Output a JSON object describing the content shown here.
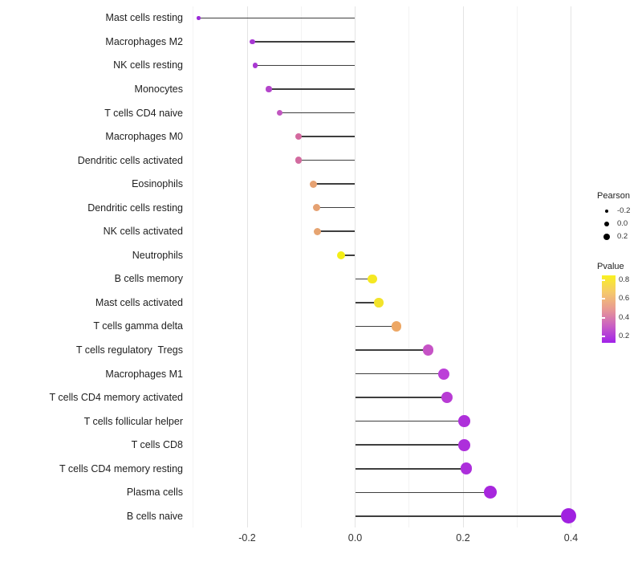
{
  "figure": {
    "background": "#ffffff"
  },
  "chart_data": {
    "type": "lollipop",
    "orientation": "horizontal",
    "title": "",
    "xlabel": "",
    "ylabel": "",
    "xlim": [
      -0.33,
      0.43
    ],
    "baseline": 0,
    "grid": "vertical only; light gray major and fainter minor lines; white panel",
    "x_major_ticks": [
      {
        "value": -0.2,
        "label": "-0.2"
      },
      {
        "value": 0.0,
        "label": "0.0"
      },
      {
        "value": 0.2,
        "label": "0.2"
      },
      {
        "value": 0.4,
        "label": "0.4"
      }
    ],
    "x_minor_ticks": [
      -0.3,
      -0.1,
      0.1,
      0.3
    ],
    "stem_color": "#3f3f3f",
    "axis_text_color": "#1f1f1f",
    "points": [
      {
        "label": "Mast cells resting",
        "pearson": -0.29,
        "pvalue_est": 0.1,
        "color": "#9B2BD9"
      },
      {
        "label": "Macrophages M2",
        "pearson": -0.19,
        "pvalue_est": 0.14,
        "color": "#A737D3"
      },
      {
        "label": "NK cells resting",
        "pearson": -0.185,
        "pvalue_est": 0.14,
        "color": "#A938D2"
      },
      {
        "label": "Monocytes",
        "pearson": -0.16,
        "pvalue_est": 0.19,
        "color": "#B445CB"
      },
      {
        "label": "T cells CD4 naive",
        "pearson": -0.14,
        "pvalue_est": 0.26,
        "color": "#C156C0"
      },
      {
        "label": "Macrophages M0",
        "pearson": -0.105,
        "pvalue_est": 0.38,
        "color": "#D4699F"
      },
      {
        "label": "Dendritic cells activated",
        "pearson": -0.105,
        "pvalue_est": 0.38,
        "color": "#D26B9F"
      },
      {
        "label": "Eosinophils",
        "pearson": -0.077,
        "pvalue_est": 0.5,
        "color": "#E6A273"
      },
      {
        "label": "Dendritic cells resting",
        "pearson": -0.072,
        "pvalue_est": 0.5,
        "color": "#E5A172"
      },
      {
        "label": "NK cells activated",
        "pearson": -0.07,
        "pvalue_est": 0.5,
        "color": "#E6A471"
      },
      {
        "label": "Neutrophils",
        "pearson": -0.026,
        "pvalue_est": 0.85,
        "color": "#F4EE16"
      },
      {
        "label": "B cells memory",
        "pearson": 0.032,
        "pvalue_est": 0.82,
        "color": "#F5E822"
      },
      {
        "label": "Mast cells activated",
        "pearson": 0.044,
        "pvalue_est": 0.8,
        "color": "#F2E32B"
      },
      {
        "label": "T cells gamma delta",
        "pearson": 0.077,
        "pvalue_est": 0.55,
        "color": "#EDA765"
      },
      {
        "label": "T cells regulatory  Tregs",
        "pearson": 0.135,
        "pvalue_est": 0.3,
        "color": "#C653C6"
      },
      {
        "label": "Macrophages M1",
        "pearson": 0.165,
        "pvalue_est": 0.2,
        "color": "#BC3FD8"
      },
      {
        "label": "T cells CD4 memory activated",
        "pearson": 0.17,
        "pvalue_est": 0.2,
        "color": "#B83CD4"
      },
      {
        "label": "T cells follicular helper",
        "pearson": 0.202,
        "pvalue_est": 0.14,
        "color": "#AE30DA"
      },
      {
        "label": "T cells CD8",
        "pearson": 0.202,
        "pvalue_est": 0.14,
        "color": "#AD2FDB"
      },
      {
        "label": "T cells CD4 memory resting",
        "pearson": 0.206,
        "pvalue_est": 0.13,
        "color": "#AC2EDB"
      },
      {
        "label": "Plasma cells",
        "pearson": 0.25,
        "pvalue_est": 0.1,
        "color": "#A727DD"
      },
      {
        "label": "B cells naive",
        "pearson": 0.395,
        "pvalue_est": 0.05,
        "color": "#A021E0"
      }
    ],
    "legend": {
      "size": {
        "title": "Pearson",
        "dot_color": "#000000",
        "entries": [
          {
            "label": "-0.2",
            "value": -0.2
          },
          {
            "label": "0.0",
            "value": 0.0
          },
          {
            "label": "0.2",
            "value": 0.2
          }
        ]
      },
      "color": {
        "title": "Pvalue",
        "tick_labels": [
          "0.8",
          "0.6",
          "0.4",
          "0.2"
        ],
        "gradient_top": "#F9F121",
        "gradient_mid": "#E89A93",
        "gradient_bottom": "#A122E9",
        "mapping": "low pvalue = purple (bottom), high pvalue = yellow (top)"
      }
    }
  }
}
